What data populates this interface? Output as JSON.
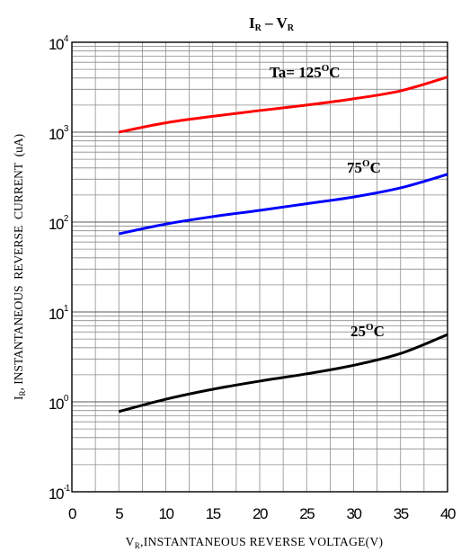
{
  "chart_data": {
    "type": "line",
    "title": {
      "main1": "I",
      "sub1": "R",
      "dash": " – ",
      "main2": "V",
      "sub2": "R"
    },
    "xlabel": {
      "main": "V",
      "sub": "R",
      "rest": ",INSTANTANEOUS REVERSE VOLTAGE(V)"
    },
    "ylabel": {
      "main": "I",
      "sub": "R",
      "rest": ", INSTANTANEOUS  REVERSE  CURRENT  (uA)"
    },
    "x_ticks": [
      "0",
      "5",
      "10",
      "15",
      "20",
      "25",
      "30",
      "35",
      "40"
    ],
    "y_ticks": [
      {
        "base": "10",
        "exp": "-1"
      },
      {
        "base": "10",
        "exp": "0"
      },
      {
        "base": "10",
        "exp": "1"
      },
      {
        "base": "10",
        "exp": "2"
      },
      {
        "base": "10",
        "exp": "3"
      },
      {
        "base": "10",
        "exp": "4"
      }
    ],
    "xlim": [
      0,
      40
    ],
    "ylim": [
      0.1,
      10000
    ],
    "y_scale": "log",
    "grid": true,
    "series": [
      {
        "name": "Ta= 125°C",
        "label": {
          "main": "Ta= 125",
          "sup": "O",
          "unit": "C"
        },
        "color": "#ff0000",
        "x": [
          5,
          10,
          15,
          20,
          25,
          30,
          35,
          40
        ],
        "y": [
          1000,
          1270,
          1500,
          1740,
          2000,
          2350,
          2880,
          4100
        ]
      },
      {
        "name": "75°C",
        "label": {
          "main": "75",
          "sup": "O",
          "unit": "C"
        },
        "color": "#0000ff",
        "x": [
          5,
          10,
          15,
          20,
          25,
          30,
          35,
          40
        ],
        "y": [
          74,
          95,
          115,
          135,
          160,
          190,
          240,
          340
        ]
      },
      {
        "name": "25°C",
        "label": {
          "main": "25",
          "sup": "O",
          "unit": "C"
        },
        "color": "#000000",
        "x": [
          5,
          10,
          15,
          20,
          25,
          30,
          35,
          40
        ],
        "y": [
          0.78,
          1.07,
          1.38,
          1.7,
          2.05,
          2.55,
          3.45,
          5.6
        ]
      }
    ]
  }
}
